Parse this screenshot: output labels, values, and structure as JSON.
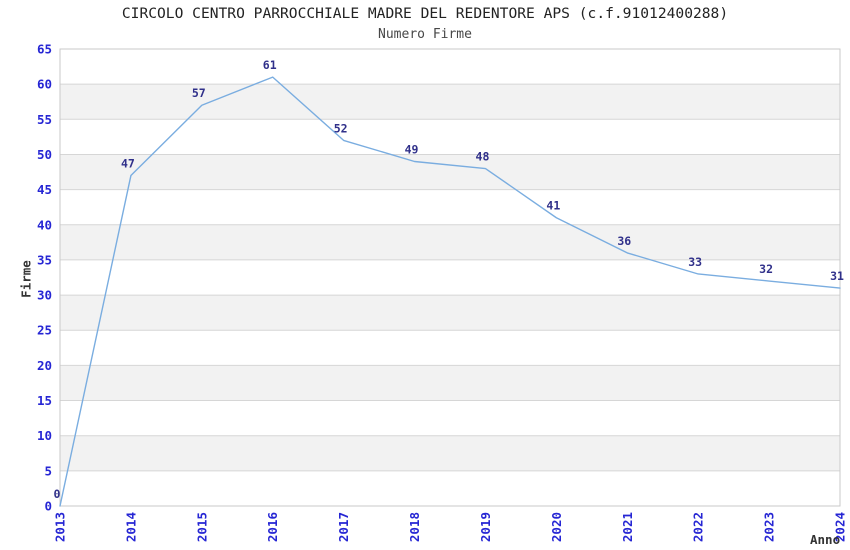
{
  "chart_data": {
    "type": "line",
    "title": "CIRCOLO CENTRO PARROCCHIALE MADRE DEL REDENTORE APS (c.f.91012400288)",
    "subtitle": "Numero Firme",
    "xlabel": "Anno",
    "ylabel": "Firme",
    "x": [
      "2013",
      "2014",
      "2015",
      "2016",
      "2017",
      "2018",
      "2019",
      "2020",
      "2021",
      "2022",
      "2023",
      "2024"
    ],
    "values": [
      0,
      47,
      57,
      61,
      52,
      49,
      48,
      41,
      36,
      33,
      32,
      31
    ],
    "ylim": [
      0,
      65
    ],
    "ytick_step": 5,
    "grid": "horizontal",
    "legend": "none",
    "colors": {
      "line": "#7aade0",
      "data_label": "#30308a",
      "tick_label": "#2626d4",
      "axis_title": "#333333",
      "grid_line": "#d6d6d6",
      "band_fill": "#f2f2f2",
      "plot_border": "#c9c9c9",
      "background": "#ffffff"
    }
  }
}
